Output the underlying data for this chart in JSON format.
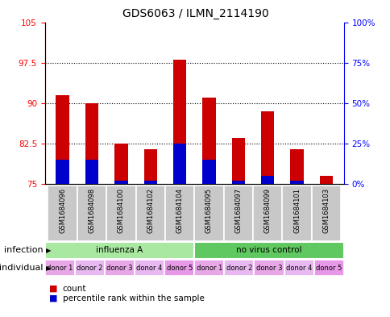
{
  "title": "GDS6063 / ILMN_2114190",
  "samples": [
    "GSM1684096",
    "GSM1684098",
    "GSM1684100",
    "GSM1684102",
    "GSM1684104",
    "GSM1684095",
    "GSM1684097",
    "GSM1684099",
    "GSM1684101",
    "GSM1684103"
  ],
  "red_values": [
    91.5,
    90.0,
    82.5,
    81.5,
    98.0,
    91.0,
    83.5,
    88.5,
    81.5,
    76.5
  ],
  "blue_percentile": [
    15,
    15,
    2,
    2,
    25,
    15,
    2,
    5,
    2,
    0
  ],
  "ylim_left": [
    75,
    105
  ],
  "ylim_right": [
    0,
    100
  ],
  "yticks_left": [
    75,
    82.5,
    90,
    97.5,
    105
  ],
  "yticks_right": [
    0,
    25,
    50,
    75,
    100
  ],
  "ytick_labels_left": [
    "75",
    "82.5",
    "90",
    "97.5",
    "105"
  ],
  "ytick_labels_right": [
    "0%",
    "25%",
    "50%",
    "75%",
    "100%"
  ],
  "infection_groups": [
    {
      "label": "influenza A",
      "start": 0,
      "end": 5,
      "color": "#a8e8a0"
    },
    {
      "label": "no virus control",
      "start": 5,
      "end": 10,
      "color": "#60c860"
    }
  ],
  "individual_labels": [
    "donor 1",
    "donor 2",
    "donor 3",
    "donor 4",
    "donor 5",
    "donor 1",
    "donor 2",
    "donor 3",
    "donor 4",
    "donor 5"
  ],
  "bar_color_red": "#CC0000",
  "bar_color_blue": "#0000CC",
  "bar_width": 0.45,
  "background_color": "#ffffff",
  "sample_bg_color": "#C8C8C8",
  "indiv_color_odd": "#e8a8e8",
  "indiv_color_even": "#e8b8f0",
  "title_fontsize": 10,
  "tick_fontsize": 7.5,
  "legend_fontsize": 7.5
}
